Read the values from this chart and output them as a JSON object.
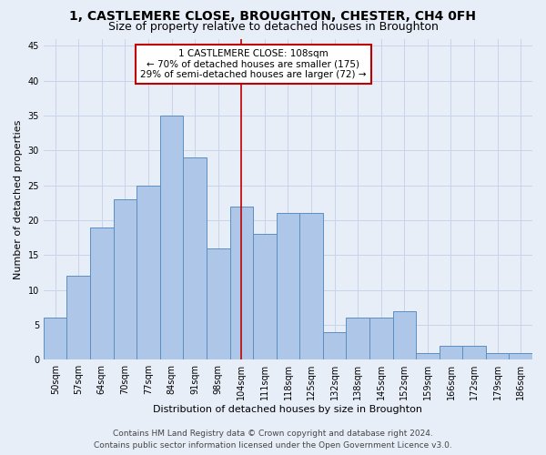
{
  "title": "1, CASTLEMERE CLOSE, BROUGHTON, CHESTER, CH4 0FH",
  "subtitle": "Size of property relative to detached houses in Broughton",
  "xlabel": "Distribution of detached houses by size in Broughton",
  "ylabel": "Number of detached properties",
  "footer_line1": "Contains HM Land Registry data © Crown copyright and database right 2024.",
  "footer_line2": "Contains public sector information licensed under the Open Government Licence v3.0.",
  "bar_labels": [
    "50sqm",
    "57sqm",
    "64sqm",
    "70sqm",
    "77sqm",
    "84sqm",
    "91sqm",
    "98sqm",
    "104sqm",
    "111sqm",
    "118sqm",
    "125sqm",
    "132sqm",
    "138sqm",
    "145sqm",
    "152sqm",
    "159sqm",
    "166sqm",
    "172sqm",
    "179sqm",
    "186sqm"
  ],
  "bar_heights": [
    6,
    12,
    19,
    23,
    25,
    35,
    29,
    16,
    22,
    18,
    21,
    21,
    4,
    6,
    6,
    7,
    1,
    2,
    2,
    1,
    1
  ],
  "bar_color": "#aec6e8",
  "bar_edge_color": "#5a8fc2",
  "vline_x_index": 8,
  "vline_color": "#c00000",
  "annotation_text": "1 CASTLEMERE CLOSE: 108sqm\n← 70% of detached houses are smaller (175)\n29% of semi-detached houses are larger (72) →",
  "annotation_box_color": "#ffffff",
  "annotation_box_edge": "#c00000",
  "ylim": [
    0,
    46
  ],
  "yticks": [
    0,
    5,
    10,
    15,
    20,
    25,
    30,
    35,
    40,
    45
  ],
  "grid_color": "#c8d4e8",
  "bg_color": "#e8eef8",
  "title_fontsize": 10,
  "subtitle_fontsize": 9,
  "axis_label_fontsize": 8,
  "tick_fontsize": 7,
  "footer_fontsize": 6.5,
  "annotation_fontsize": 7.5
}
